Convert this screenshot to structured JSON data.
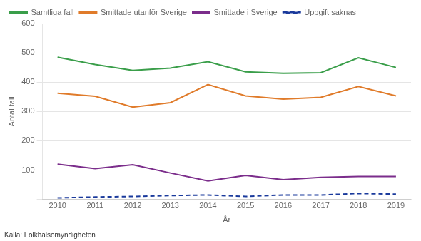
{
  "chart_data": {
    "type": "line",
    "x_label": "År",
    "y_label": "Antal fall",
    "annotations": [
      "Källa: Folkhälsomyndigheten"
    ],
    "x": [
      2010,
      2011,
      2012,
      2013,
      2014,
      2015,
      2016,
      2017,
      2018,
      2019
    ],
    "series": [
      {
        "name": "Samtliga fall",
        "color": "#3a9e4a",
        "line_style": "solid",
        "values": [
          485,
          460,
          440,
          448,
          470,
          435,
          430,
          432,
          483,
          450
        ]
      },
      {
        "name": "Smittade utanför Sverige",
        "color": "#e07b2a",
        "line_style": "solid",
        "values": [
          362,
          352,
          315,
          330,
          392,
          353,
          342,
          348,
          385,
          353
        ]
      },
      {
        "name": "Smittade i Sverige",
        "color": "#7b2d8b",
        "line_style": "solid",
        "values": [
          120,
          105,
          118,
          90,
          63,
          82,
          67,
          75,
          78,
          78
        ]
      },
      {
        "name": "Uppgift saknas",
        "color": "#1a3a9c",
        "line_style": "dashed",
        "values": [
          5,
          8,
          10,
          13,
          15,
          10,
          15,
          15,
          20,
          18
        ]
      }
    ],
    "xlim": [
      2009.6,
      2019.4
    ],
    "xticks": [
      2010,
      2011,
      2012,
      2013,
      2014,
      2015,
      2016,
      2017,
      2018,
      2019
    ],
    "ylim": [
      0,
      600
    ],
    "yticks": [
      {
        "value": 0,
        "label": ""
      },
      100,
      200,
      300,
      400,
      500,
      600
    ],
    "grid": "y",
    "legend": "top"
  }
}
